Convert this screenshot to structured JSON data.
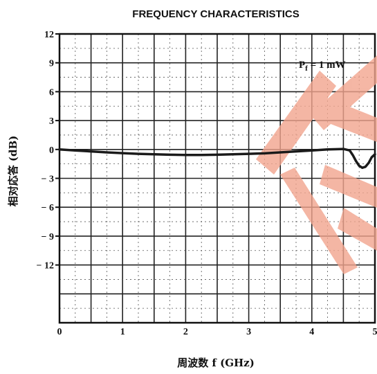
{
  "chart_data": {
    "type": "line",
    "title": "FREQUENCY CHARACTERISTICS",
    "xlabel": "周波数  f (GHz)",
    "ylabel": "相对応答 (dB)",
    "xlim": [
      0,
      5
    ],
    "ylim": [
      -18,
      12
    ],
    "x_ticks": [
      0,
      1,
      2,
      3,
      4,
      5
    ],
    "x_tick_labels": [
      "0",
      "1",
      "2",
      "3",
      "4",
      "5"
    ],
    "y_ticks": [
      12,
      9,
      6,
      3,
      0,
      -3,
      -6,
      -9,
      -12
    ],
    "y_tick_labels": [
      "12",
      "9",
      "6",
      "3",
      "0",
      "− 3",
      "− 6",
      "− 9",
      "− 12"
    ],
    "grid": true,
    "annotation": {
      "base": "P",
      "subscript": "f",
      "rest": " = 1 mW"
    },
    "watermark_color": "#f2a58e",
    "line_color": "#1a1a1a",
    "series": [
      {
        "x": [
          0,
          0.25,
          0.5,
          0.75,
          1.0,
          1.25,
          1.5,
          1.75,
          2.0,
          2.25,
          2.5,
          2.75,
          3.0,
          3.25,
          3.5,
          3.75,
          4.0,
          4.25,
          4.5,
          4.6,
          4.65,
          4.7,
          4.75,
          4.8,
          4.85,
          4.9,
          4.95,
          5.0
        ],
        "y": [
          0.0,
          -0.1,
          -0.2,
          -0.3,
          -0.38,
          -0.45,
          -0.5,
          -0.55,
          -0.57,
          -0.57,
          -0.55,
          -0.5,
          -0.45,
          -0.4,
          -0.3,
          -0.2,
          -0.1,
          0.0,
          0.05,
          -0.1,
          -0.6,
          -1.2,
          -1.7,
          -1.9,
          -1.8,
          -1.4,
          -0.8,
          -0.5
        ]
      }
    ]
  }
}
